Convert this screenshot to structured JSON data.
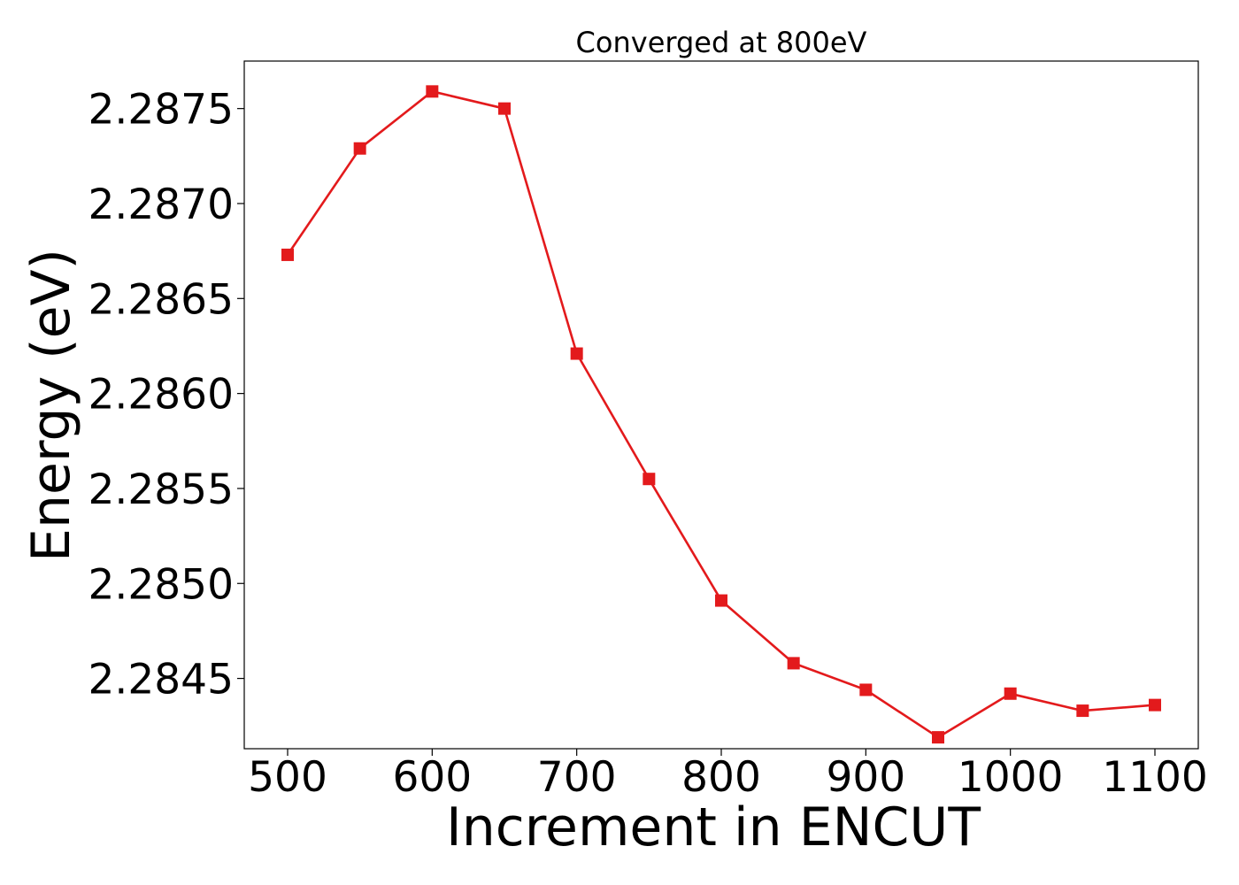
{
  "chart_data": {
    "type": "line",
    "title": "Converged at 800eV",
    "xlabel": "Increment in ENCUT",
    "ylabel": "Energy (eV)",
    "xlim": [
      470,
      1130
    ],
    "ylim": [
      2.28413,
      2.28775
    ],
    "x_ticks": [
      500,
      600,
      700,
      800,
      900,
      1000,
      1100
    ],
    "y_ticks": [
      2.2845,
      2.285,
      2.2855,
      2.286,
      2.2865,
      2.287,
      2.2875
    ],
    "y_tick_labels": [
      "2.2845",
      "2.2850",
      "2.2855",
      "2.2860",
      "2.2865",
      "2.2870",
      "2.2875"
    ],
    "x_tick_labels": [
      "500",
      "600",
      "700",
      "800",
      "900",
      "1000",
      "1100"
    ],
    "grid": false,
    "series": [
      {
        "marker": "square",
        "color": "#e31a1c",
        "points": [
          {
            "x": 500,
            "y": 2.28673
          },
          {
            "x": 550,
            "y": 2.28729
          },
          {
            "x": 600,
            "y": 2.28759
          },
          {
            "x": 650,
            "y": 2.2875
          },
          {
            "x": 700,
            "y": 2.28621
          },
          {
            "x": 750,
            "y": 2.28555
          },
          {
            "x": 800,
            "y": 2.28491
          },
          {
            "x": 850,
            "y": 2.28458
          },
          {
            "x": 900,
            "y": 2.28444
          },
          {
            "x": 950,
            "y": 2.28419
          },
          {
            "x": 1000,
            "y": 2.28442
          },
          {
            "x": 1050,
            "y": 2.28433
          },
          {
            "x": 1100,
            "y": 2.28436
          }
        ]
      }
    ]
  }
}
